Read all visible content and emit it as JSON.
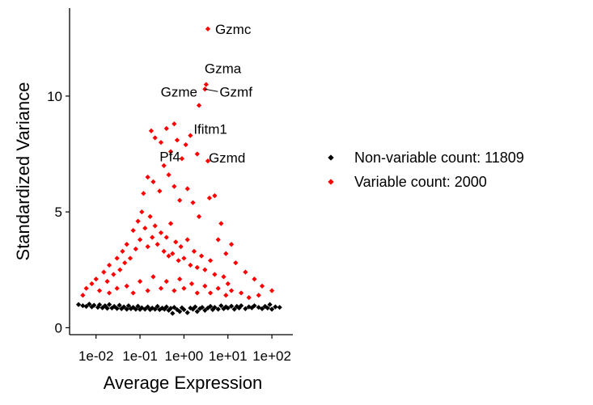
{
  "chart_data": {
    "type": "scatter",
    "xlabel": "Average Expression",
    "ylabel": "Standardized Variance",
    "x_scale": "log10",
    "xlim": [
      0.0025,
      300
    ],
    "ylim": [
      -0.3,
      13.8
    ],
    "x_ticks": [
      {
        "value": 0.01,
        "label": "1e-02"
      },
      {
        "value": 0.1,
        "label": "1e-01"
      },
      {
        "value": 1,
        "label": "1e+00"
      },
      {
        "value": 10,
        "label": "1e+01"
      },
      {
        "value": 100,
        "label": "1e+02"
      }
    ],
    "y_ticks": [
      {
        "value": 0,
        "label": "0"
      },
      {
        "value": 5,
        "label": "5"
      },
      {
        "value": 10,
        "label": "10"
      }
    ],
    "grid": false,
    "legend_position": "right",
    "series": [
      {
        "name": "Non-variable count: 11809",
        "color": "#000000",
        "points": [
          [
            0.004,
            1.0
          ],
          [
            0.005,
            0.95
          ],
          [
            0.006,
            0.92
          ],
          [
            0.007,
            1.02
          ],
          [
            0.008,
            0.9
          ],
          [
            0.009,
            0.97
          ],
          [
            0.011,
            0.88
          ],
          [
            0.012,
            0.99
          ],
          [
            0.014,
            0.86
          ],
          [
            0.016,
            0.95
          ],
          [
            0.018,
            0.84
          ],
          [
            0.02,
            1.0
          ],
          [
            0.023,
            0.85
          ],
          [
            0.026,
            0.92
          ],
          [
            0.03,
            0.83
          ],
          [
            0.034,
            0.97
          ],
          [
            0.038,
            0.82
          ],
          [
            0.043,
            0.9
          ],
          [
            0.05,
            0.8
          ],
          [
            0.055,
            0.95
          ],
          [
            0.062,
            0.82
          ],
          [
            0.07,
            0.88
          ],
          [
            0.08,
            0.8
          ],
          [
            0.09,
            0.93
          ],
          [
            0.1,
            0.79
          ],
          [
            0.11,
            0.86
          ],
          [
            0.13,
            0.8
          ],
          [
            0.15,
            0.9
          ],
          [
            0.17,
            0.78
          ],
          [
            0.19,
            0.85
          ],
          [
            0.22,
            0.8
          ],
          [
            0.25,
            0.92
          ],
          [
            0.28,
            0.78
          ],
          [
            0.32,
            0.85
          ],
          [
            0.36,
            0.8
          ],
          [
            0.4,
            0.9
          ],
          [
            0.45,
            0.75
          ],
          [
            0.5,
            0.84
          ],
          [
            0.55,
            0.62
          ],
          [
            0.6,
            0.88
          ],
          [
            0.7,
            0.78
          ],
          [
            0.8,
            0.7
          ],
          [
            0.9,
            0.86
          ],
          [
            1.0,
            0.78
          ],
          [
            1.2,
            0.65
          ],
          [
            1.4,
            0.85
          ],
          [
            1.6,
            0.8
          ],
          [
            1.8,
            0.9
          ],
          [
            2.0,
            0.7
          ],
          [
            2.3,
            0.82
          ],
          [
            2.6,
            0.88
          ],
          [
            3.0,
            0.75
          ],
          [
            3.5,
            0.85
          ],
          [
            4.0,
            0.92
          ],
          [
            4.5,
            0.78
          ],
          [
            5.0,
            0.88
          ],
          [
            6.0,
            0.8
          ],
          [
            7.0,
            0.95
          ],
          [
            8.0,
            0.82
          ],
          [
            9.0,
            0.9
          ],
          [
            10,
            0.85
          ],
          [
            12,
            0.93
          ],
          [
            14,
            0.8
          ],
          [
            16,
            0.92
          ],
          [
            18,
            0.85
          ],
          [
            20,
            0.95
          ],
          [
            25,
            0.82
          ],
          [
            30,
            0.9
          ],
          [
            35,
            0.86
          ],
          [
            40,
            0.95
          ],
          [
            50,
            0.88
          ],
          [
            60,
            0.82
          ],
          [
            70,
            0.92
          ],
          [
            80,
            0.85
          ],
          [
            90,
            1.0
          ],
          [
            100,
            0.8
          ],
          [
            120,
            0.9
          ],
          [
            150,
            0.88
          ]
        ]
      },
      {
        "name": "Variable count: 2000",
        "color": "#ff0000",
        "points": [
          [
            3.5,
            12.9
          ],
          [
            3.2,
            10.5
          ],
          [
            3.0,
            10.3
          ],
          [
            2.2,
            9.6
          ],
          [
            0.6,
            8.8
          ],
          [
            1.4,
            8.3
          ],
          [
            0.5,
            7.6
          ],
          [
            2.0,
            7.5
          ],
          [
            3.5,
            7.2
          ],
          [
            0.18,
            8.5
          ],
          [
            0.22,
            8.2
          ],
          [
            0.3,
            8.0
          ],
          [
            0.4,
            8.6
          ],
          [
            0.7,
            8.1
          ],
          [
            1.1,
            7.9
          ],
          [
            0.9,
            7.3
          ],
          [
            0.35,
            7.0
          ],
          [
            0.15,
            6.5
          ],
          [
            0.12,
            5.8
          ],
          [
            0.2,
            6.3
          ],
          [
            0.28,
            5.9
          ],
          [
            0.45,
            6.6
          ],
          [
            0.6,
            6.1
          ],
          [
            0.8,
            5.5
          ],
          [
            1.2,
            6.0
          ],
          [
            1.6,
            5.4
          ],
          [
            2.2,
            4.8
          ],
          [
            3.8,
            5.6
          ],
          [
            5.0,
            5.7
          ],
          [
            7.0,
            4.5
          ],
          [
            6.0,
            3.8
          ],
          [
            9.0,
            3.2
          ],
          [
            15,
            2.8
          ],
          [
            12,
            3.6
          ],
          [
            25,
            2.4
          ],
          [
            40,
            2.1
          ],
          [
            60,
            1.8
          ],
          [
            100,
            1.6
          ],
          [
            0.005,
            1.4
          ],
          [
            0.006,
            1.7
          ],
          [
            0.008,
            1.9
          ],
          [
            0.01,
            2.1
          ],
          [
            0.012,
            1.6
          ],
          [
            0.015,
            2.4
          ],
          [
            0.018,
            2.0
          ],
          [
            0.02,
            2.7
          ],
          [
            0.025,
            2.3
          ],
          [
            0.03,
            3.0
          ],
          [
            0.035,
            2.5
          ],
          [
            0.04,
            3.3
          ],
          [
            0.045,
            2.8
          ],
          [
            0.05,
            3.6
          ],
          [
            0.06,
            3.0
          ],
          [
            0.07,
            4.2
          ],
          [
            0.08,
            3.4
          ],
          [
            0.09,
            4.6
          ],
          [
            0.1,
            3.8
          ],
          [
            0.11,
            5.0
          ],
          [
            0.13,
            4.3
          ],
          [
            0.15,
            3.5
          ],
          [
            0.17,
            4.8
          ],
          [
            0.19,
            3.9
          ],
          [
            0.22,
            4.4
          ],
          [
            0.25,
            3.6
          ],
          [
            0.3,
            4.1
          ],
          [
            0.35,
            3.3
          ],
          [
            0.4,
            3.9
          ],
          [
            0.45,
            3.1
          ],
          [
            0.5,
            4.5
          ],
          [
            0.55,
            3.2
          ],
          [
            0.65,
            3.7
          ],
          [
            0.75,
            2.9
          ],
          [
            0.85,
            3.5
          ],
          [
            1.0,
            3.0
          ],
          [
            1.2,
            3.8
          ],
          [
            1.4,
            2.7
          ],
          [
            1.7,
            3.3
          ],
          [
            2.0,
            2.6
          ],
          [
            2.5,
            3.1
          ],
          [
            3.0,
            2.5
          ],
          [
            4.0,
            2.9
          ],
          [
            5.0,
            2.3
          ],
          [
            8.0,
            2.2
          ],
          [
            10,
            1.9
          ],
          [
            0.02,
            1.5
          ],
          [
            0.03,
            1.7
          ],
          [
            0.05,
            1.8
          ],
          [
            0.07,
            1.5
          ],
          [
            0.1,
            2.0
          ],
          [
            0.15,
            1.6
          ],
          [
            0.2,
            2.2
          ],
          [
            0.3,
            1.7
          ],
          [
            0.4,
            2.0
          ],
          [
            0.6,
            1.6
          ],
          [
            0.8,
            2.1
          ],
          [
            1.0,
            1.7
          ],
          [
            1.5,
            1.9
          ],
          [
            2.0,
            1.5
          ],
          [
            3.0,
            1.8
          ],
          [
            4.0,
            1.5
          ],
          [
            6.0,
            1.7
          ],
          [
            9.0,
            1.4
          ],
          [
            12,
            1.6
          ],
          [
            20,
            1.5
          ],
          [
            30,
            1.3
          ],
          [
            50,
            1.4
          ]
        ]
      }
    ],
    "annotations": [
      {
        "text": "Gzmc",
        "x": 3.5,
        "y": 12.9,
        "leader": false
      },
      {
        "text": "Gzma",
        "x": 3.2,
        "y": 10.5,
        "leader": false
      },
      {
        "text": "Gzmf",
        "x": 3.0,
        "y": 10.3,
        "leader": true
      },
      {
        "text": "Gzme",
        "x": 2.2,
        "y": 9.6,
        "leader": false
      },
      {
        "text": "Ifitm1",
        "x": 1.4,
        "y": 8.3,
        "leader": false
      },
      {
        "text": "Pf4",
        "x": 0.5,
        "y": 7.6,
        "leader": false
      },
      {
        "text": "Gzmd",
        "x": 3.5,
        "y": 7.2,
        "leader": false
      }
    ]
  }
}
